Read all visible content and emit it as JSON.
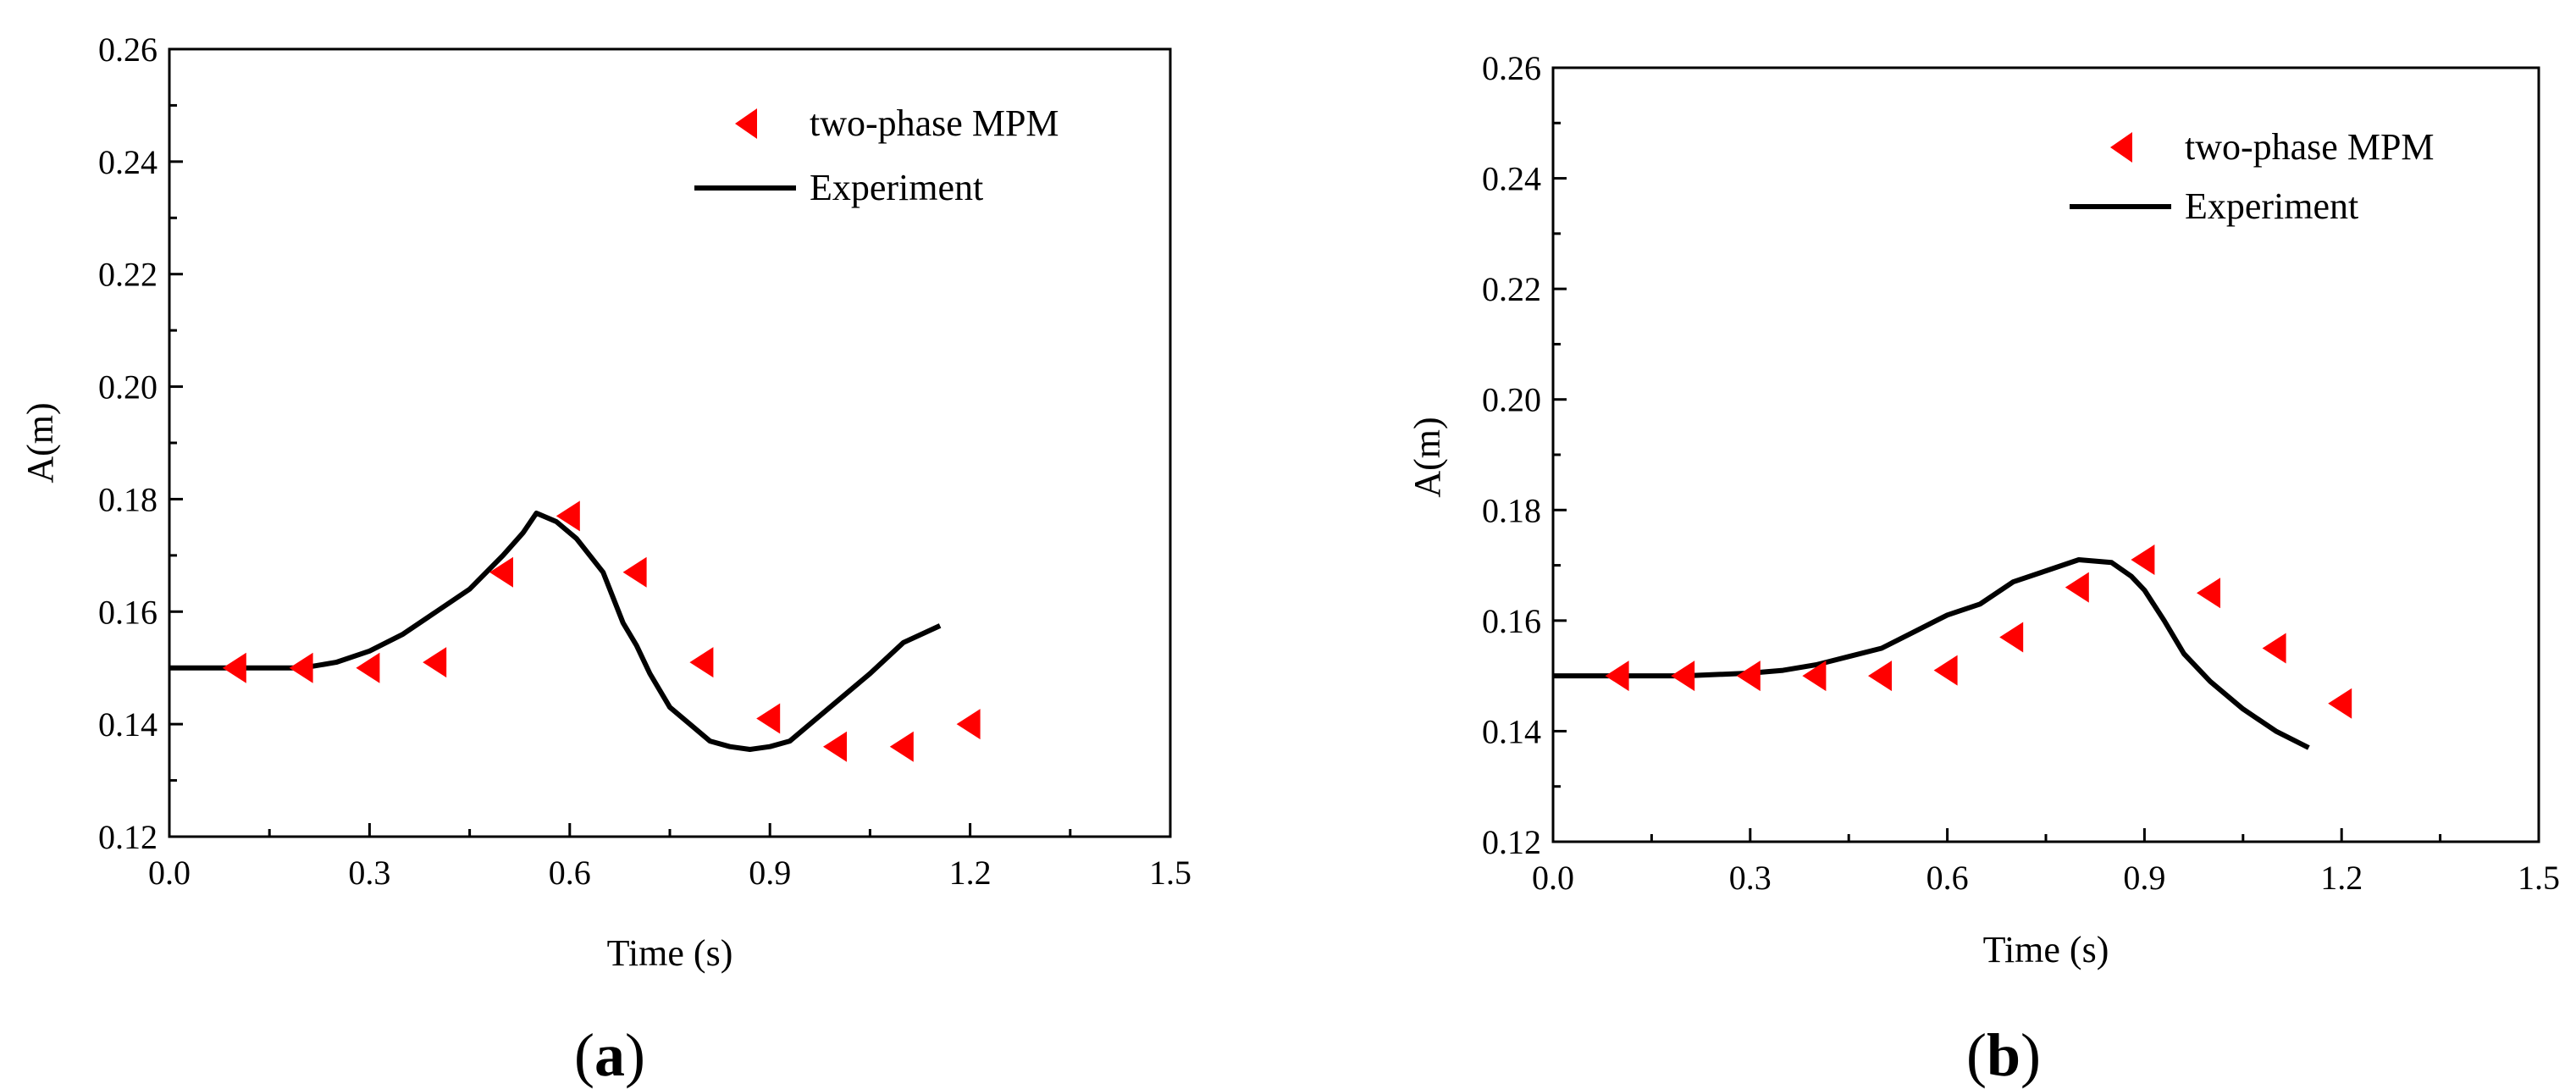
{
  "chart_data": [
    {
      "type": "scatter+line",
      "panel_label": "a",
      "xlabel": "Time (s)",
      "ylabel": "A(m)",
      "xlim": [
        0.0,
        1.5
      ],
      "ylim": [
        0.12,
        0.26
      ],
      "xticks": [
        "0.0",
        "0.3",
        "0.6",
        "0.9",
        "1.2",
        "1.5"
      ],
      "yticks": [
        "0.12",
        "0.14",
        "0.16",
        "0.18",
        "0.20",
        "0.22",
        "0.24",
        "0.26"
      ],
      "legend": {
        "placement": "top-right",
        "entries": [
          "two-phase MPM",
          "Experiment"
        ]
      },
      "series": [
        {
          "name": "two-phase MPM",
          "kind": "scatter",
          "marker": "left-triangle",
          "color": "#ff0000",
          "x": [
            0.1,
            0.2,
            0.3,
            0.4,
            0.5,
            0.6,
            0.7,
            0.8,
            0.9,
            1.0,
            1.1,
            1.2
          ],
          "y": [
            0.15,
            0.15,
            0.15,
            0.151,
            0.167,
            0.177,
            0.167,
            0.151,
            0.141,
            0.136,
            0.136,
            0.14
          ]
        },
        {
          "name": "Experiment",
          "kind": "line",
          "color": "#000000",
          "x": [
            0.0,
            0.1,
            0.2,
            0.25,
            0.3,
            0.35,
            0.4,
            0.45,
            0.5,
            0.53,
            0.55,
            0.58,
            0.61,
            0.65,
            0.68,
            0.7,
            0.72,
            0.75,
            0.78,
            0.81,
            0.84,
            0.87,
            0.9,
            0.93,
            0.96,
            1.0,
            1.05,
            1.1,
            1.155
          ],
          "y": [
            0.15,
            0.15,
            0.15,
            0.151,
            0.153,
            0.156,
            0.16,
            0.164,
            0.17,
            0.174,
            0.1775,
            0.176,
            0.173,
            0.167,
            0.158,
            0.154,
            0.149,
            0.143,
            0.14,
            0.137,
            0.136,
            0.1355,
            0.136,
            0.137,
            0.14,
            0.144,
            0.149,
            0.1545,
            0.1575
          ]
        }
      ]
    },
    {
      "type": "scatter+line",
      "panel_label": "b",
      "xlabel": "Time (s)",
      "ylabel": "A(m)",
      "xlim": [
        0.0,
        1.5
      ],
      "ylim": [
        0.12,
        0.26
      ],
      "xticks": [
        "0.0",
        "0.3",
        "0.6",
        "0.9",
        "1.2",
        "1.5"
      ],
      "yticks": [
        "0.12",
        "0.14",
        "0.16",
        "0.18",
        "0.20",
        "0.22",
        "0.24",
        "0.26"
      ],
      "legend": {
        "placement": "top-right",
        "entries": [
          "two-phase MPM",
          "Experiment"
        ]
      },
      "series": [
        {
          "name": "two-phase MPM",
          "kind": "scatter",
          "marker": "left-triangle",
          "color": "#ff0000",
          "x": [
            0.1,
            0.2,
            0.3,
            0.4,
            0.5,
            0.6,
            0.7,
            0.8,
            0.9,
            1.0,
            1.1,
            1.2
          ],
          "y": [
            0.15,
            0.15,
            0.15,
            0.15,
            0.15,
            0.151,
            0.157,
            0.166,
            0.171,
            0.165,
            0.155,
            0.145
          ]
        },
        {
          "name": "Experiment",
          "kind": "line",
          "color": "#000000",
          "x": [
            0.0,
            0.1,
            0.2,
            0.3,
            0.35,
            0.4,
            0.45,
            0.5,
            0.55,
            0.6,
            0.65,
            0.7,
            0.75,
            0.8,
            0.85,
            0.88,
            0.9,
            0.93,
            0.96,
            1.0,
            1.05,
            1.1,
            1.15
          ],
          "y": [
            0.15,
            0.15,
            0.15,
            0.1505,
            0.151,
            0.152,
            0.1535,
            0.155,
            0.158,
            0.161,
            0.163,
            0.167,
            0.169,
            0.171,
            0.1705,
            0.168,
            0.1655,
            0.16,
            0.154,
            0.149,
            0.144,
            0.14,
            0.137
          ]
        }
      ]
    }
  ]
}
